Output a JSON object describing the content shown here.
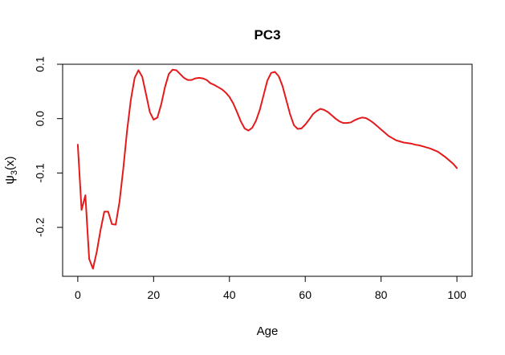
{
  "chart_data": {
    "type": "line",
    "title": "PC3",
    "xlabel": "Age",
    "ylabel_base": "ψ",
    "ylabel_sub": "3",
    "ylabel_tail": "(x)",
    "xlim": [
      -4,
      104
    ],
    "ylim": [
      -0.29,
      0.1
    ],
    "x_ticks": [
      0,
      20,
      40,
      60,
      80,
      100
    ],
    "x_tick_labels": [
      "0",
      "20",
      "40",
      "60",
      "80",
      "100"
    ],
    "y_ticks": [
      -0.2,
      -0.1,
      0.0,
      0.1
    ],
    "y_tick_labels": [
      "-0.2",
      "-0.1",
      "0.0",
      "0.1"
    ],
    "grid": false,
    "series": [
      {
        "color": "#e41a1c",
        "x": [
          0,
          1,
          2,
          3,
          4,
          5,
          6,
          7,
          8,
          9,
          10,
          11,
          12,
          13,
          14,
          15,
          16,
          17,
          18,
          19,
          20,
          21,
          22,
          23,
          24,
          25,
          26,
          27,
          28,
          29,
          30,
          31,
          32,
          33,
          34,
          35,
          36,
          37,
          38,
          39,
          40,
          41,
          42,
          43,
          44,
          45,
          46,
          47,
          48,
          49,
          50,
          51,
          52,
          53,
          54,
          55,
          56,
          57,
          58,
          59,
          60,
          61,
          62,
          63,
          64,
          65,
          66,
          67,
          68,
          69,
          70,
          71,
          72,
          73,
          74,
          75,
          76,
          77,
          78,
          79,
          80,
          81,
          82,
          83,
          84,
          85,
          86,
          87,
          88,
          89,
          90,
          91,
          92,
          93,
          94,
          95,
          96,
          97,
          98,
          99,
          100
        ],
        "y": [
          -0.048,
          -0.168,
          -0.141,
          -0.258,
          -0.276,
          -0.245,
          -0.205,
          -0.171,
          -0.171,
          -0.194,
          -0.195,
          -0.153,
          -0.092,
          -0.022,
          0.035,
          0.075,
          0.089,
          0.077,
          0.045,
          0.012,
          -0.002,
          0.002,
          0.026,
          0.058,
          0.082,
          0.09,
          0.089,
          0.082,
          0.075,
          0.071,
          0.071,
          0.074,
          0.075,
          0.074,
          0.071,
          0.065,
          0.062,
          0.058,
          0.054,
          0.048,
          0.04,
          0.028,
          0.012,
          -0.005,
          -0.018,
          -0.022,
          -0.017,
          -0.004,
          0.016,
          0.043,
          0.07,
          0.084,
          0.086,
          0.078,
          0.06,
          0.034,
          0.008,
          -0.012,
          -0.019,
          -0.018,
          -0.011,
          -0.002,
          0.008,
          0.014,
          0.018,
          0.016,
          0.012,
          0.006,
          0.0,
          -0.005,
          -0.008,
          -0.008,
          -0.007,
          -0.003,
          0.0,
          0.002,
          0.001,
          -0.003,
          -0.008,
          -0.014,
          -0.02,
          -0.026,
          -0.032,
          -0.036,
          -0.04,
          -0.042,
          -0.044,
          -0.045,
          -0.046,
          -0.048,
          -0.049,
          -0.051,
          -0.053,
          -0.055,
          -0.058,
          -0.061,
          -0.066,
          -0.071,
          -0.077,
          -0.083,
          -0.091
        ]
      }
    ]
  }
}
